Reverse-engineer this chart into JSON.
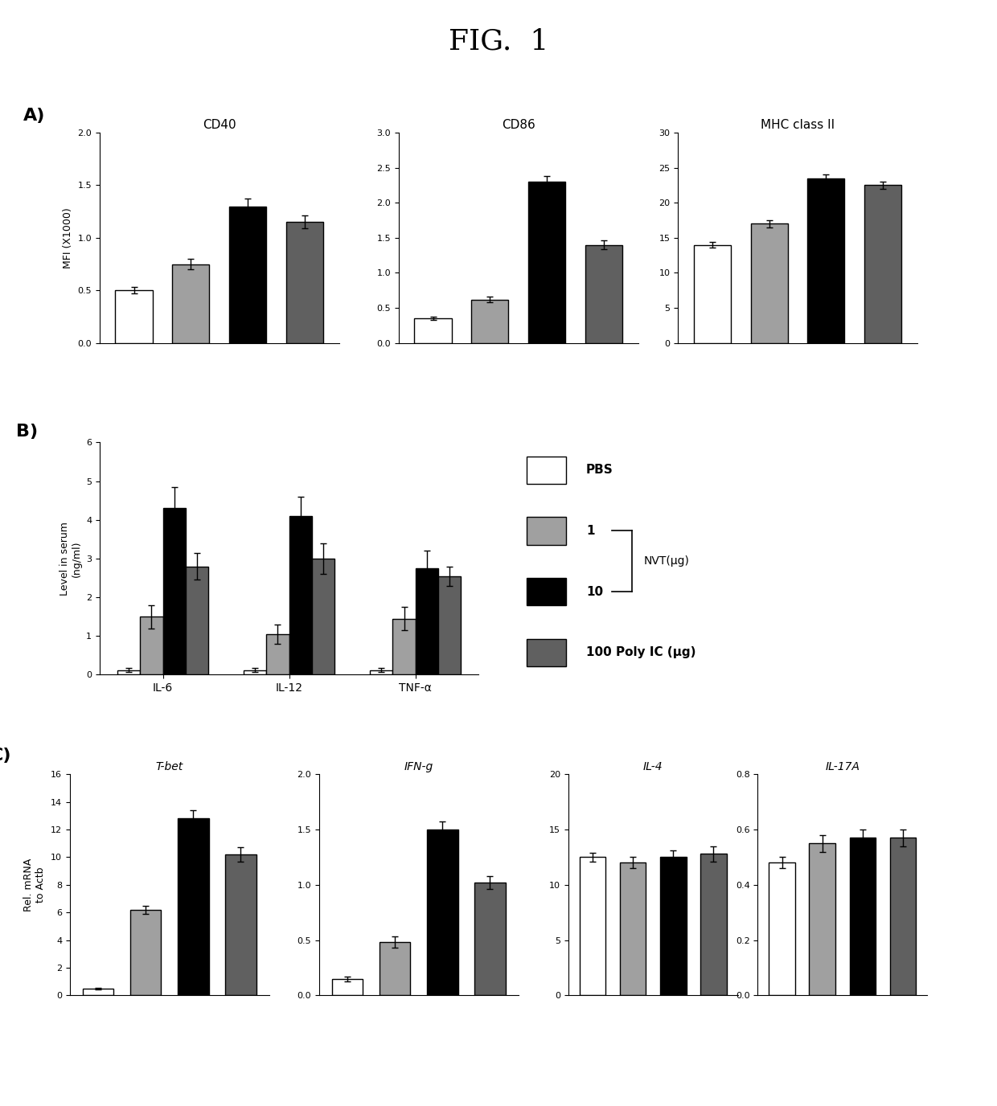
{
  "fig_title": "FIG.  1",
  "bar_colors": [
    "white",
    "#a0a0a0",
    "black",
    "#606060"
  ],
  "bar_edgecolor": "black",
  "panel_A": {
    "subplots": [
      {
        "title": "CD40",
        "ylabel": "MFI (X1000)",
        "ylim": [
          0,
          2.0
        ],
        "yticks": [
          0.0,
          0.5,
          1.0,
          1.5,
          2.0
        ],
        "yticklabels": [
          "0.0",
          "0.5",
          "1.0",
          "1.5",
          "2.0"
        ],
        "values": [
          0.5,
          0.75,
          1.3,
          1.15
        ],
        "errors": [
          0.03,
          0.05,
          0.07,
          0.06
        ]
      },
      {
        "title": "CD86",
        "ylabel": "",
        "ylim": [
          0,
          3.0
        ],
        "yticks": [
          0.0,
          0.5,
          1.0,
          1.5,
          2.0,
          2.5,
          3.0
        ],
        "yticklabels": [
          "0.0",
          "0.5",
          "1.0",
          "1.5",
          "2.0",
          "2.5",
          "3.0"
        ],
        "values": [
          0.35,
          0.62,
          2.3,
          1.4
        ],
        "errors": [
          0.02,
          0.04,
          0.08,
          0.06
        ]
      },
      {
        "title": "MHC class II",
        "ylabel": "",
        "ylim": [
          0,
          30
        ],
        "yticks": [
          0,
          5,
          10,
          15,
          20,
          25,
          30
        ],
        "yticklabels": [
          "0",
          "5",
          "10",
          "15",
          "20",
          "25",
          "30"
        ],
        "values": [
          14.0,
          17.0,
          23.5,
          22.5
        ],
        "errors": [
          0.4,
          0.5,
          0.5,
          0.5
        ]
      }
    ]
  },
  "panel_B": {
    "ylabel": "Level in serum\n(ng/ml)",
    "ylim": [
      0,
      6
    ],
    "yticks": [
      0,
      1,
      2,
      3,
      4,
      5,
      6
    ],
    "groups": [
      "IL-6",
      "IL-12",
      "TNF-α"
    ],
    "values": [
      [
        0.12,
        1.5,
        4.3,
        2.8
      ],
      [
        0.12,
        1.05,
        4.1,
        3.0
      ],
      [
        0.12,
        1.45,
        2.75,
        2.55
      ]
    ],
    "errors": [
      [
        0.05,
        0.3,
        0.55,
        0.35
      ],
      [
        0.05,
        0.25,
        0.5,
        0.4
      ],
      [
        0.05,
        0.3,
        0.45,
        0.25
      ]
    ]
  },
  "panel_C": {
    "ylabel": "Rel. mRNA\nto Actb",
    "subplots": [
      {
        "title": "T-bet",
        "ylim": [
          0,
          16
        ],
        "yticks": [
          0,
          2,
          4,
          6,
          8,
          10,
          12,
          14,
          16
        ],
        "values": [
          0.5,
          6.2,
          12.8,
          10.2
        ],
        "errors": [
          0.05,
          0.3,
          0.6,
          0.5
        ]
      },
      {
        "title": "IFN-g",
        "ylim": [
          0,
          2.0
        ],
        "yticks": [
          0.0,
          0.5,
          1.0,
          1.5,
          2.0
        ],
        "values": [
          0.15,
          0.48,
          1.5,
          1.02
        ],
        "errors": [
          0.02,
          0.05,
          0.07,
          0.06
        ]
      },
      {
        "title": "IL-4",
        "ylim": [
          0,
          20
        ],
        "yticks": [
          0,
          5,
          10,
          15,
          20
        ],
        "values": [
          12.5,
          12.0,
          12.5,
          12.8
        ],
        "errors": [
          0.4,
          0.5,
          0.6,
          0.7
        ]
      },
      {
        "title": "IL-17A",
        "ylim": [
          0,
          0.8
        ],
        "yticks": [
          0.0,
          0.2,
          0.4,
          0.6,
          0.8
        ],
        "values": [
          0.48,
          0.55,
          0.57,
          0.57
        ],
        "errors": [
          0.02,
          0.03,
          0.03,
          0.03
        ]
      }
    ]
  },
  "legend_items": [
    {
      "label": "PBS",
      "color": "white"
    },
    {
      "label": "1",
      "color": "#a0a0a0"
    },
    {
      "label": "10",
      "color": "black"
    },
    {
      "label": "100 Poly IC (μg)",
      "color": "#606060"
    }
  ],
  "nvt_label": "NVT(μg)"
}
